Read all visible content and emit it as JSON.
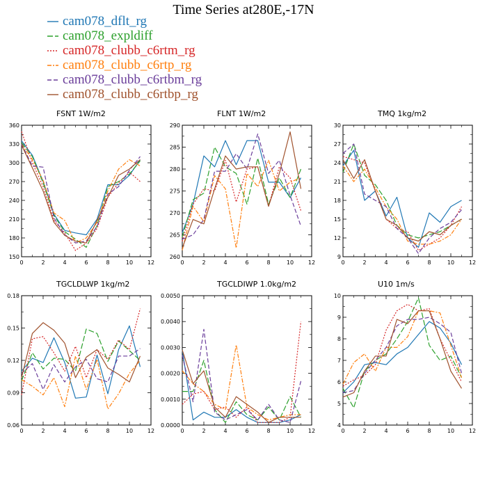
{
  "chart_data": {
    "type": "line",
    "title": "Time Series at280E,-17N",
    "series_names": [
      "cam078_dflt_rg",
      "cam078_expldiff",
      "cam078_clubb_c6rtm_rg",
      "cam078_clubb_c6rtp_rg",
      "cam078_clubb_c6rtbm_rg",
      "cam078_clubb_c6rtbp_rg"
    ],
    "series_colors": [
      "#1f77b4",
      "#2ca02c",
      "#d62728",
      "#ff7f0e",
      "#6a3d9a",
      "#a0522d"
    ],
    "series_dash": [
      "",
      "8,3",
      "2,2",
      "6,2,2,2",
      "6,3",
      ""
    ],
    "x": [
      0,
      1,
      2,
      3,
      4,
      5,
      6,
      7,
      8,
      9,
      10,
      11
    ],
    "panels": [
      {
        "title": "FSNT   1W/m2",
        "xlim": [
          0,
          12
        ],
        "xticks": [
          0,
          2,
          4,
          6,
          8,
          10,
          12
        ],
        "ylim": [
          150,
          360
        ],
        "yticks": [
          150,
          180,
          210,
          240,
          270,
          300,
          330,
          360
        ],
        "ytick_labels": [
          "150",
          "180",
          "210",
          "240",
          "270",
          "300",
          "330",
          "360"
        ],
        "series": [
          [
            335,
            312,
            270,
            218,
            192,
            188,
            185,
            210,
            265,
            265,
            280,
            305
          ],
          [
            332,
            310,
            268,
            216,
            190,
            178,
            165,
            200,
            262,
            270,
            282,
            303
          ],
          [
            350,
            300,
            262,
            208,
            188,
            160,
            172,
            195,
            245,
            268,
            285,
            270
          ],
          [
            330,
            305,
            272,
            220,
            208,
            172,
            180,
            205,
            255,
            290,
            305,
            295
          ],
          [
            330,
            295,
            293,
            212,
            185,
            172,
            175,
            198,
            250,
            262,
            288,
            310
          ],
          [
            328,
            292,
            255,
            205,
            184,
            175,
            172,
            208,
            245,
            280,
            290,
            305
          ]
        ]
      },
      {
        "title": "FLNT   1W/m2",
        "xlim": [
          0,
          12
        ],
        "xticks": [
          0,
          2,
          4,
          6,
          8,
          10,
          12
        ],
        "ylim": [
          260,
          290
        ],
        "yticks": [
          260,
          265,
          270,
          275,
          280,
          285,
          290
        ],
        "ytick_labels": [
          "260",
          "265",
          "270",
          "275",
          "280",
          "285",
          "290"
        ],
        "series": [
          [
            265.5,
            272,
            283,
            280.5,
            286.5,
            281,
            286.5,
            286.5,
            277,
            277,
            273.5,
            278
          ],
          [
            264.5,
            273,
            274.5,
            285,
            280.5,
            279,
            272,
            282.5,
            272,
            278,
            273.5,
            280
          ],
          [
            263.5,
            272,
            275.5,
            275,
            282,
            272.5,
            280,
            280.5,
            271.5,
            280.5,
            278,
            270.5
          ],
          [
            261.5,
            271.5,
            268,
            278.5,
            275.5,
            262,
            279,
            276,
            282,
            275,
            277,
            278
          ],
          [
            264,
            265,
            268.5,
            279.5,
            279.5,
            283.5,
            280,
            288,
            279,
            282,
            274,
            267
          ],
          [
            262,
            268.5,
            267.5,
            275.5,
            283,
            280,
            280.5,
            280.5,
            271.5,
            279,
            288.5,
            275.5
          ]
        ]
      },
      {
        "title": "TMQ   1kg/m2",
        "xlim": [
          0,
          12
        ],
        "xticks": [
          0,
          2,
          4,
          6,
          8,
          10,
          12
        ],
        "ylim": [
          9,
          30
        ],
        "yticks": [
          9,
          12,
          15,
          18,
          21,
          24,
          27,
          30
        ],
        "ytick_labels": [
          "9",
          "12",
          "15",
          "18",
          "21",
          "24",
          "27",
          "30"
        ],
        "series": [
          [
            23.5,
            26,
            18,
            19.5,
            15.5,
            18.5,
            12,
            10.5,
            16,
            14.5,
            17,
            18
          ],
          [
            22.5,
            27,
            22,
            20.5,
            18,
            14,
            12.5,
            12,
            12.5,
            13,
            14,
            15
          ],
          [
            25,
            24.5,
            24,
            19.5,
            15,
            13.5,
            13,
            10,
            11,
            12,
            14,
            17
          ],
          [
            23.5,
            21,
            23,
            20,
            17,
            15,
            11.5,
            11,
            11,
            11.5,
            12.5,
            15
          ],
          [
            25.5,
            27,
            19,
            18,
            17,
            13.5,
            12,
            9.5,
            12,
            13.5,
            14.5,
            16.5
          ],
          [
            24.5,
            21.5,
            24.5,
            19.5,
            15,
            14,
            12,
            11.5,
            13,
            12.5,
            14,
            15
          ]
        ]
      },
      {
        "title": "TGCLDLWP   1kg/m2",
        "xlim": [
          0,
          12
        ],
        "xticks": [
          0,
          2,
          4,
          6,
          8,
          10,
          12
        ],
        "ylim": [
          0.06,
          0.18
        ],
        "yticks": [
          0.06,
          0.09,
          0.12,
          0.15,
          0.18
        ],
        "ytick_labels": [
          "0.06",
          "0.09",
          "0.12",
          "0.15",
          "0.18"
        ],
        "series": [
          [
            0.11,
            0.122,
            0.118,
            0.141,
            0.118,
            0.085,
            0.086,
            0.125,
            0.089,
            0.13,
            0.152,
            0.114
          ],
          [
            0.101,
            0.127,
            0.112,
            0.122,
            0.121,
            0.11,
            0.149,
            0.145,
            0.119,
            0.138,
            0.129,
            0.12
          ],
          [
            0.088,
            0.14,
            0.142,
            0.127,
            0.11,
            0.133,
            0.104,
            0.13,
            0.121,
            0.139,
            0.13,
            0.168
          ],
          [
            0.102,
            0.096,
            0.088,
            0.104,
            0.077,
            0.124,
            0.093,
            0.121,
            0.075,
            0.089,
            0.108,
            0.12
          ],
          [
            0.108,
            0.117,
            0.093,
            0.116,
            0.1,
            0.114,
            0.121,
            0.103,
            0.1,
            0.124,
            0.124,
            0.131
          ],
          [
            0.104,
            0.145,
            0.155,
            0.148,
            0.136,
            0.104,
            0.123,
            0.13,
            0.113,
            0.107,
            0.1,
            0.124
          ]
        ]
      },
      {
        "title": "TGCLDIWP   1.0kg/m2",
        "xlim": [
          0,
          12
        ],
        "xticks": [
          0,
          2,
          4,
          6,
          8,
          10,
          12
        ],
        "ylim": [
          0,
          0.005
        ],
        "yticks": [
          0,
          0.001,
          0.002,
          0.003,
          0.004,
          0.005
        ],
        "ytick_labels": [
          "0.0000",
          "0.0010",
          "0.0020",
          "0.0030",
          "0.0040",
          "0.0050"
        ],
        "series": [
          [
            0.0029,
            0.0002,
            0.0005,
            0.0003,
            0.0003,
            0.0006,
            0.0003,
            0.0001,
            0.0001,
            0.0001,
            0.0002,
            0.0004
          ],
          [
            0.0013,
            0.0013,
            0.0025,
            0.0006,
            0.0001,
            0.0009,
            0.0004,
            0.0002,
            0.0007,
            0.0002,
            0.0011,
            0.0003
          ],
          [
            0.0008,
            0.0012,
            0.0013,
            0.0006,
            0.0007,
            0.0003,
            0.0007,
            0.0001,
            0.0001,
            0.0001,
            0.0003,
            0.004
          ],
          [
            0.0021,
            0.0016,
            0.0013,
            0.0008,
            0.0006,
            0.0031,
            0.0007,
            0.0004,
            0.0002,
            0.0003,
            0.0004,
            0.0004
          ],
          [
            0.0027,
            0.0009,
            0.0037,
            0.0005,
            0.0002,
            0.0004,
            0.0006,
            0.0002,
            0.0008,
            0.0002,
            0.0001,
            0.0017
          ],
          [
            0.0029,
            0.0016,
            0.0021,
            0.0007,
            0.0003,
            0.0011,
            0.0008,
            0.0005,
            0.0001,
            0.0003,
            0.0003,
            0.0003
          ]
        ]
      },
      {
        "title": "U10   1m/s",
        "xlim": [
          0,
          12
        ],
        "xticks": [
          0,
          2,
          4,
          6,
          8,
          10,
          12
        ],
        "ylim": [
          4,
          10
        ],
        "yticks": [
          4,
          5,
          6,
          7,
          8,
          9,
          10
        ],
        "ytick_labels": [
          "4",
          "5",
          "6",
          "7",
          "8",
          "9",
          "10"
        ],
        "series": [
          [
            5.5,
            6,
            6.8,
            6.9,
            6.8,
            7.3,
            7.6,
            8.2,
            8.8,
            8.5,
            7.8,
            6.8
          ],
          [
            5.7,
            4.8,
            6.5,
            7,
            7.3,
            8,
            8.8,
            9.9,
            7.7,
            7,
            7.2,
            6.2
          ],
          [
            5.8,
            6.1,
            6.3,
            6.8,
            8.4,
            9.3,
            9.6,
            9.3,
            9.4,
            8,
            7,
            6
          ],
          [
            5.9,
            6.9,
            7.3,
            6.5,
            7.6,
            7.6,
            8.1,
            9.3,
            9.3,
            9.2,
            7.7,
            6.2
          ],
          [
            5.5,
            5.6,
            6.4,
            7,
            7.6,
            8.6,
            8.9,
            8.9,
            9,
            8.7,
            8.3,
            6.4
          ],
          [
            5.3,
            5.5,
            6.5,
            7.2,
            7.2,
            8.9,
            8.7,
            9.3,
            9.3,
            8,
            6.5,
            5.7
          ]
        ]
      }
    ]
  }
}
